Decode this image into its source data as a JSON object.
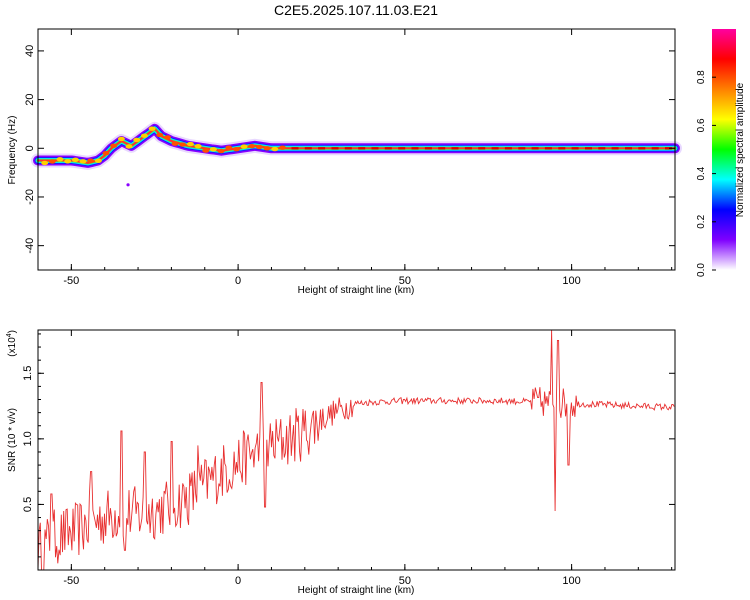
{
  "title": "C2E5.2025.107.11.03.E21",
  "chart_data": [
    {
      "type": "heatmap",
      "name": "spectrogram",
      "xlabel": "Height of straight line (km)",
      "ylabel": "Frequency (Hz)",
      "xlim": [
        -60,
        131
      ],
      "ylim": [
        -50,
        49
      ],
      "xticks": [
        -50,
        0,
        50,
        100
      ],
      "yticks": [
        -40,
        -20,
        0,
        20,
        40
      ],
      "ridge": {
        "x": [
          -60,
          -55,
          -50,
          -45,
          -42,
          -40,
          -38,
          -35,
          -32,
          -30,
          -28,
          -26,
          -25,
          -23,
          -20,
          -15,
          -10,
          -5,
          0,
          5,
          10,
          15,
          20,
          30,
          131
        ],
        "y": [
          -5,
          -5,
          -5,
          -6,
          -5,
          -3,
          0,
          3,
          1,
          3,
          5,
          7,
          8,
          5,
          3,
          1,
          0,
          -1,
          0,
          1,
          0,
          0,
          0,
          0,
          0
        ]
      },
      "colorbar": {
        "label": "Normalized spectral amplitude",
        "range": [
          0.0,
          1.0
        ],
        "ticks": [
          "0.0",
          "0.2",
          "0.4",
          "0.6",
          "0.8"
        ],
        "colors": [
          "#ffffff",
          "#7f00ff",
          "#0000ff",
          "#00ffff",
          "#00ff00",
          "#ffff00",
          "#ff8000",
          "#ff0000",
          "#ff00a0"
        ]
      }
    },
    {
      "type": "line",
      "name": "snr",
      "xlabel": "Height of straight line (km)",
      "ylabel": "SNR (10 * v/v)",
      "scale_label": "(x10",
      "scale_exp": "4",
      "xlim": [
        -60,
        131
      ],
      "ylim": [
        0,
        1.83
      ],
      "xticks": [
        -50,
        0,
        50,
        100
      ],
      "yticks": [
        "0.5",
        "1.0",
        "1.5"
      ],
      "color": "#e83030",
      "trend": {
        "x": [
          -60,
          -55,
          -50,
          -45,
          -40,
          -35,
          -30,
          -25,
          -20,
          -15,
          -10,
          -5,
          0,
          5,
          10,
          15,
          20,
          25,
          30,
          35,
          40,
          50,
          60,
          80,
          90,
          100,
          110,
          120,
          131
        ],
        "y": [
          0.15,
          0.25,
          0.28,
          0.35,
          0.4,
          0.45,
          0.42,
          0.45,
          0.5,
          0.55,
          0.65,
          0.75,
          0.82,
          0.9,
          0.95,
          1.0,
          1.06,
          1.15,
          1.22,
          1.27,
          1.28,
          1.29,
          1.29,
          1.29,
          1.28,
          1.27,
          1.26,
          1.25,
          1.24
        ]
      },
      "spikes": [
        {
          "x": -56,
          "y": 0.58
        },
        {
          "x": -44,
          "y": 0.75
        },
        {
          "x": -35,
          "y": 1.06
        },
        {
          "x": -34,
          "y": 0.15
        },
        {
          "x": -28,
          "y": 0.9
        },
        {
          "x": -20,
          "y": 0.98
        },
        {
          "x": -12,
          "y": 0.95
        },
        {
          "x": 7,
          "y": 1.43
        },
        {
          "x": 8,
          "y": 0.48
        },
        {
          "x": 94,
          "y": 1.83
        },
        {
          "x": 95,
          "y": 0.45
        },
        {
          "x": 96,
          "y": 1.75
        },
        {
          "x": 99,
          "y": 0.8
        }
      ]
    }
  ]
}
